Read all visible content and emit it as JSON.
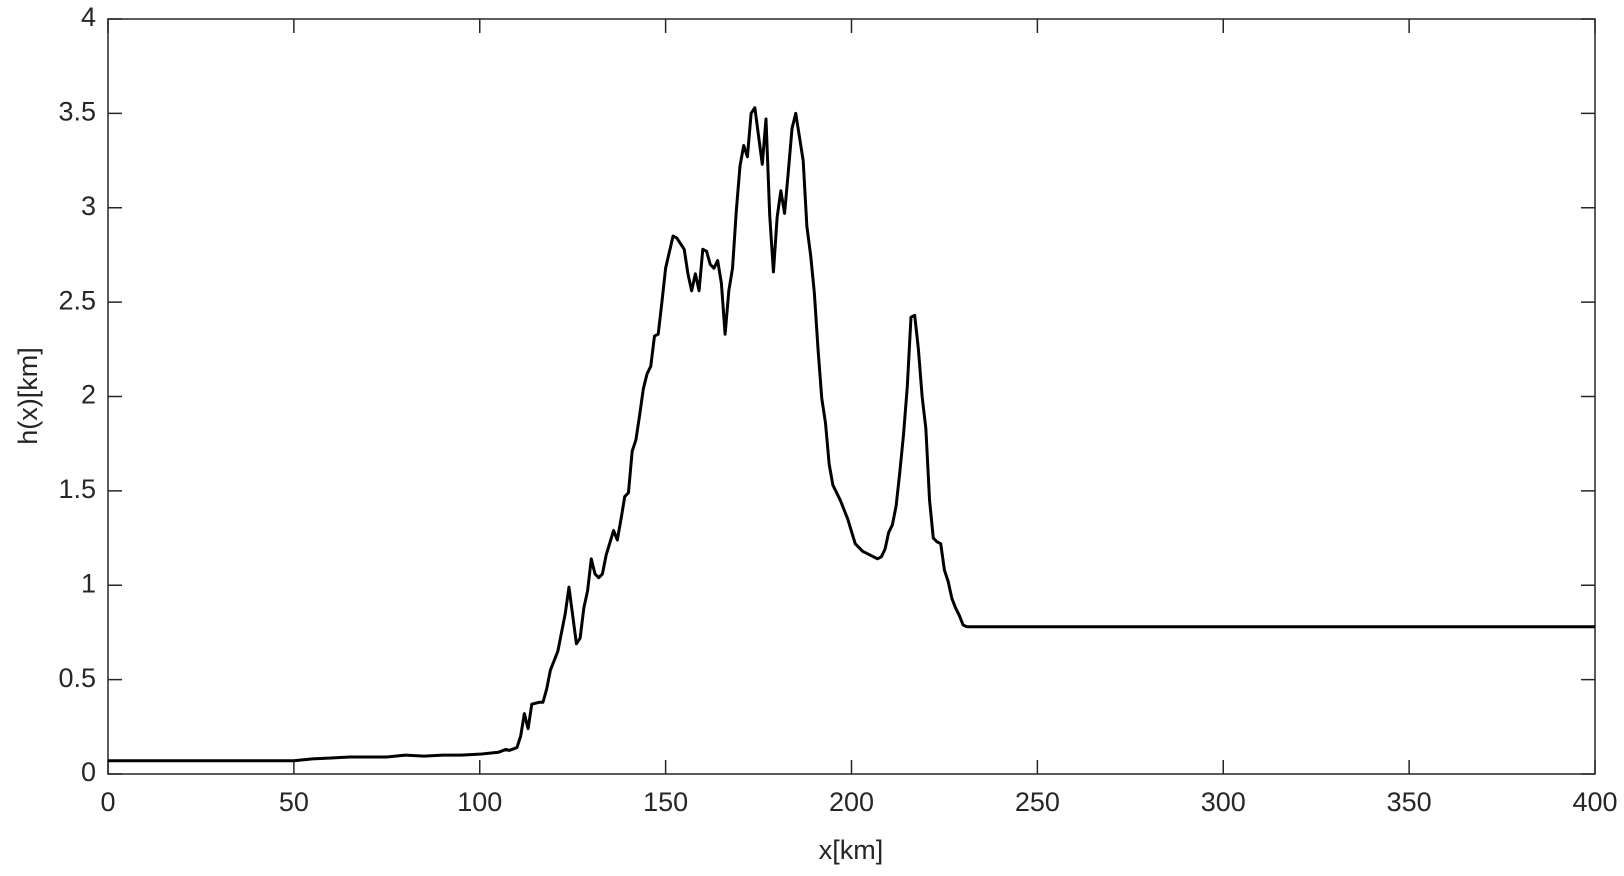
{
  "chart_data": {
    "type": "line",
    "xlabel": "x[km]",
    "ylabel": "h(x)[km]",
    "x": [
      0,
      50,
      55,
      60,
      65,
      70,
      75,
      80,
      85,
      90,
      95,
      100,
      105,
      107,
      108,
      110,
      111,
      112,
      113,
      114,
      116,
      117,
      118,
      119,
      121,
      123,
      124,
      126,
      127,
      128,
      129,
      130,
      131,
      132,
      133,
      134,
      136,
      137,
      138,
      139,
      140,
      141,
      142,
      143,
      144,
      145,
      146,
      147,
      148,
      149,
      150,
      152,
      153,
      155,
      156,
      157,
      158,
      159,
      160,
      161,
      162,
      163,
      164,
      165,
      166,
      167,
      168,
      169,
      170,
      171,
      172,
      173,
      174,
      175,
      176,
      177,
      178,
      179,
      180,
      181,
      182,
      183,
      184,
      185,
      187,
      188,
      189,
      190,
      191,
      192,
      193,
      194,
      195,
      197,
      199,
      201,
      203,
      205,
      207,
      208,
      209,
      210,
      211,
      212,
      213,
      214,
      215,
      216,
      217,
      218,
      219,
      220,
      221,
      222,
      223,
      224,
      225,
      226,
      227,
      228,
      229,
      230,
      231,
      400
    ],
    "series": [
      {
        "color": "#000000",
        "values": [
          0.07,
          0.07,
          0.08,
          0.085,
          0.09,
          0.09,
          0.09,
          0.1,
          0.095,
          0.1,
          0.1,
          0.105,
          0.115,
          0.13,
          0.125,
          0.14,
          0.2,
          0.32,
          0.24,
          0.37,
          0.38,
          0.38,
          0.45,
          0.55,
          0.65,
          0.85,
          0.99,
          0.69,
          0.72,
          0.88,
          0.97,
          1.14,
          1.06,
          1.04,
          1.06,
          1.16,
          1.29,
          1.24,
          1.35,
          1.47,
          1.49,
          1.71,
          1.77,
          1.9,
          2.04,
          2.12,
          2.16,
          2.32,
          2.33,
          2.5,
          2.68,
          2.85,
          2.84,
          2.78,
          2.65,
          2.56,
          2.65,
          2.56,
          2.78,
          2.77,
          2.7,
          2.68,
          2.72,
          2.6,
          2.33,
          2.56,
          2.68,
          2.98,
          3.22,
          3.33,
          3.27,
          3.5,
          3.53,
          3.38,
          3.23,
          3.47,
          2.96,
          2.66,
          2.95,
          3.09,
          2.97,
          3.19,
          3.42,
          3.5,
          3.25,
          2.9,
          2.75,
          2.55,
          2.25,
          1.99,
          1.86,
          1.64,
          1.53,
          1.45,
          1.35,
          1.22,
          1.18,
          1.16,
          1.14,
          1.15,
          1.19,
          1.28,
          1.32,
          1.42,
          1.6,
          1.8,
          2.05,
          2.42,
          2.43,
          2.25,
          2.0,
          1.83,
          1.45,
          1.25,
          1.23,
          1.22,
          1.08,
          1.02,
          0.93,
          0.88,
          0.84,
          0.79,
          0.78,
          0.78
        ]
      }
    ],
    "xlim": [
      0,
      400
    ],
    "ylim": [
      0,
      4
    ],
    "xticks": [
      0,
      50,
      100,
      150,
      200,
      250,
      300,
      350,
      400
    ],
    "yticks": [
      0,
      0.5,
      1,
      1.5,
      2,
      2.5,
      3,
      3.5,
      4
    ]
  }
}
